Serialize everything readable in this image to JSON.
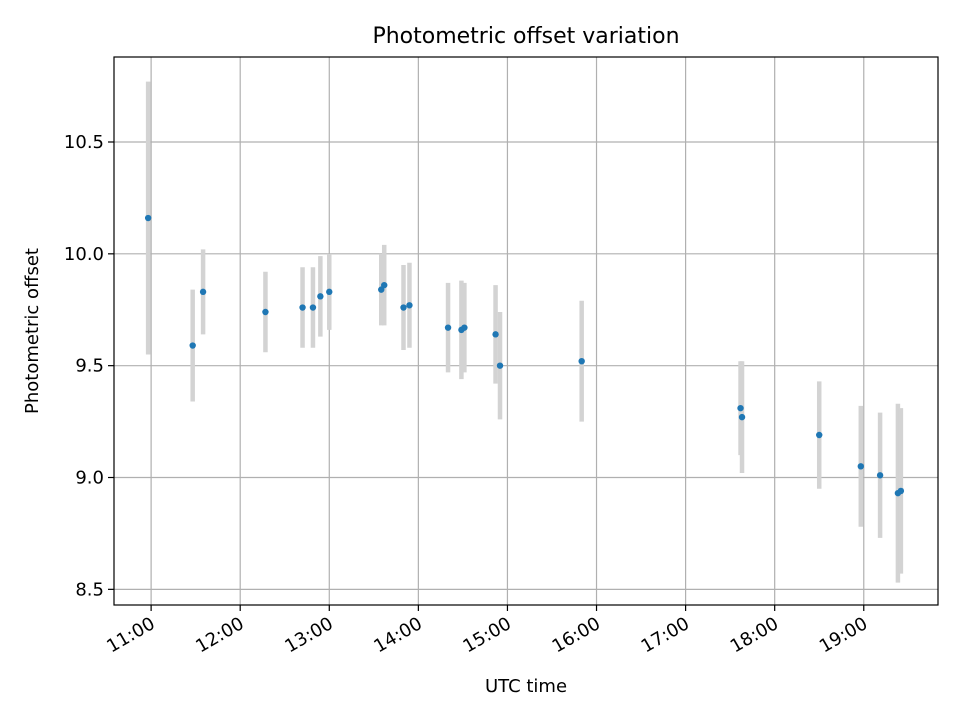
{
  "chart_data": {
    "type": "scatter",
    "title": "Photometric offset variation",
    "xlabel": "UTC time",
    "ylabel": "Photometric offset",
    "x_axis_type": "time",
    "xlim": [
      "10:35",
      "19:50"
    ],
    "ylim": [
      8.43,
      10.88
    ],
    "grid": true,
    "x_ticks": [
      "11:00",
      "12:00",
      "13:00",
      "14:00",
      "15:00",
      "16:00",
      "17:00",
      "18:00",
      "19:00"
    ],
    "y_ticks": [
      8.5,
      9.0,
      9.5,
      10.0,
      10.5
    ],
    "y_tick_labels": [
      "8.5",
      "9.0",
      "9.5",
      "10.0",
      "10.5"
    ],
    "colors": {
      "point": "#1f77b4",
      "errorbar": "#d3d3d3",
      "grid": "#b0b0b0"
    },
    "series": [
      {
        "points": [
          {
            "x": "10:58",
            "y": 10.16,
            "err": 0.61
          },
          {
            "x": "11:28",
            "y": 9.59,
            "err": 0.25
          },
          {
            "x": "11:35",
            "y": 9.83,
            "err": 0.19
          },
          {
            "x": "12:17",
            "y": 9.74,
            "err": 0.18
          },
          {
            "x": "12:42",
            "y": 9.76,
            "err": 0.18
          },
          {
            "x": "12:49",
            "y": 9.76,
            "err": 0.18
          },
          {
            "x": "12:54",
            "y": 9.81,
            "err": 0.18
          },
          {
            "x": "13:00",
            "y": 9.83,
            "err": 0.17
          },
          {
            "x": "13:35",
            "y": 9.84,
            "err": 0.16
          },
          {
            "x": "13:37",
            "y": 9.86,
            "err": 0.18
          },
          {
            "x": "13:50",
            "y": 9.76,
            "err": 0.19
          },
          {
            "x": "13:54",
            "y": 9.77,
            "err": 0.19
          },
          {
            "x": "14:20",
            "y": 9.67,
            "err": 0.2
          },
          {
            "x": "14:29",
            "y": 9.66,
            "err": 0.22
          },
          {
            "x": "14:31",
            "y": 9.67,
            "err": 0.2
          },
          {
            "x": "14:52",
            "y": 9.64,
            "err": 0.22
          },
          {
            "x": "14:55",
            "y": 9.5,
            "err": 0.24
          },
          {
            "x": "15:50",
            "y": 9.52,
            "err": 0.27
          },
          {
            "x": "17:37",
            "y": 9.31,
            "err": 0.21
          },
          {
            "x": "17:38",
            "y": 9.27,
            "err": 0.25
          },
          {
            "x": "18:30",
            "y": 9.19,
            "err": 0.24
          },
          {
            "x": "18:58",
            "y": 9.05,
            "err": 0.27
          },
          {
            "x": "19:11",
            "y": 9.01,
            "err": 0.28
          },
          {
            "x": "19:23",
            "y": 8.93,
            "err": 0.4
          },
          {
            "x": "19:25",
            "y": 8.94,
            "err": 0.37
          }
        ]
      }
    ]
  }
}
